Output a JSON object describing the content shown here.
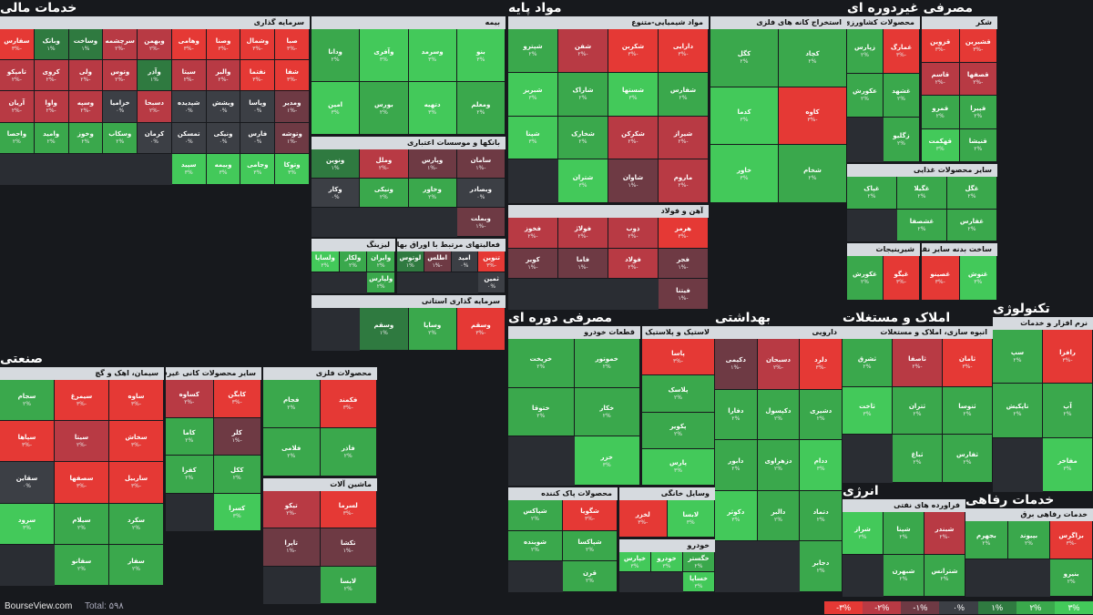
{
  "site": "BourseView.com",
  "total": "Total: ۵۹۸",
  "colors": {
    "background": "#17191d",
    "header_bar": "#d6dadf"
  },
  "legend": [
    {
      "label": "-۳%",
      "color": "#e53935"
    },
    {
      "label": "-۲%",
      "color": "#b83a44"
    },
    {
      "label": "-۱%",
      "color": "#6e3a44"
    },
    {
      "label": "۰%",
      "color": "#3c3f45"
    },
    {
      "label": "۱%",
      "color": "#2f7a40"
    },
    {
      "label": "۲%",
      "color": "#3aa84c"
    },
    {
      "label": "۳%",
      "color": "#43c95a"
    }
  ],
  "chart_data": {
    "type": "heatmap",
    "sectors": [
      {
        "name": "خدمات مالی",
        "groups": [
          {
            "name": "سرمایه گذاری",
            "stocks": [
              [
                "صبا",
                -3
              ],
              [
                "وشمال",
                -3
              ],
              [
                "وصنا",
                -3
              ],
              [
                "وهامی",
                -3
              ],
              [
                "وبهمن",
                -2
              ],
              [
                "سرچشمه",
                -2
              ],
              [
                "وساخت",
                1
              ],
              [
                "وبانک",
                1
              ],
              [
                "سفارس",
                -3
              ],
              [
                "شفا",
                -3
              ],
              [
                "نفتما",
                -3
              ],
              [
                "والبر",
                -2
              ],
              [
                "سیتا",
                -2
              ],
              [
                "وآذر",
                1
              ],
              [
                "وتوس",
                -2
              ],
              [
                "ولی",
                -2
              ],
              [
                "کروی",
                -2
              ],
              [
                "تامپکو",
                -2
              ],
              [
                "ومدیر",
                -1
              ],
              [
                "وپاسا",
                0
              ],
              [
                "ویشش",
                0
              ],
              [
                "شپدیده",
                0
              ],
              [
                "دسبحا",
                -2
              ],
              [
                "خزامیا",
                0
              ],
              [
                "وسپه",
                -2
              ],
              [
                "واوا",
                -2
              ],
              [
                "آریان",
                -2
              ],
              [
                "وتوشه",
                -1
              ],
              [
                "فارس",
                0
              ],
              [
                "ونیکی",
                0
              ],
              [
                "تمسکن",
                0
              ],
              [
                "کرمان",
                0
              ],
              [
                "وسکاب",
                2
              ],
              [
                "وخوز",
                2
              ],
              [
                "وامید",
                2
              ],
              [
                "واحصا",
                2
              ],
              [
                "وتوکا",
                3
              ],
              [
                "وجامی",
                3
              ],
              [
                "وبیمه",
                3
              ],
              [
                "سپید",
                3
              ]
            ]
          },
          {
            "name": "بیمه",
            "stocks": [
              [
                "بنو",
                3
              ],
              [
                "وسرمد",
                3
              ],
              [
                "وآفری",
                3
              ],
              [
                "ودانا",
                2
              ],
              [
                "ومعلم",
                2
              ],
              [
                "دتهیه",
                3
              ],
              [
                "بورس",
                2
              ],
              [
                "امین",
                3
              ]
            ]
          },
          {
            "name": "بانکها و موسسات اعتباری",
            "stocks": [
              [
                "سامان",
                -1
              ],
              [
                "وپارس",
                -1
              ],
              [
                "وملل",
                -2
              ],
              [
                "ونوین",
                1
              ],
              [
                "وبصادر",
                0
              ],
              [
                "وخاور",
                2
              ],
              [
                "ونیکی",
                2
              ],
              [
                "وکار",
                0
              ],
              [
                "وبملت",
                -1
              ]
            ]
          },
          {
            "name": "فعالیتهای مرتبط با اوراق بهادار",
            "stocks": [
              [
                "تنوین",
                -3
              ],
              [
                "امید",
                0
              ],
              [
                "اطلس",
                -1
              ],
              [
                "لوتوس",
                1
              ],
              [
                "ثمین",
                0
              ]
            ]
          },
          {
            "name": "لیزینگ",
            "stocks": [
              [
                "وایران",
                2
              ],
              [
                "ولکار",
                2
              ],
              [
                "ولساپا",
                3
              ],
              [
                "ولپارس",
                2
              ]
            ]
          },
          {
            "name": "سرمایه گذاری استانی",
            "stocks": [
              [
                "وسقم",
                -3
              ],
              [
                "وساپا",
                2
              ],
              [
                "وسقم",
                1
              ]
            ]
          }
        ]
      },
      {
        "name": "مواد پایه",
        "groups": [
          {
            "name": "مواد شیمیایی-متنوع",
            "stocks": [
              [
                "دارایی",
                -3
              ],
              [
                "شکربن",
                -3
              ],
              [
                "شفن",
                -2
              ],
              [
                "شپترو",
                2
              ],
              [
                "شفارس",
                2
              ],
              [
                "شستها",
                3
              ],
              [
                "شاراک",
                2
              ],
              [
                "شبریز",
                3
              ],
              [
                "شیراز",
                -2
              ],
              [
                "شکرکن",
                -2
              ],
              [
                "شخارک",
                2
              ],
              [
                "شپنا",
                3
              ],
              [
                "ماروم",
                -2
              ],
              [
                "شاوان",
                -1
              ],
              [
                "شتران",
                3
              ]
            ]
          },
          {
            "name": "استخراج کانه های فلزی",
            "stocks": [
              [
                "کچاد",
                2
              ],
              [
                "کگل",
                2
              ],
              [
                "کاوه",
                -3
              ],
              [
                "کدما",
                3
              ],
              [
                "شخام",
                2
              ],
              [
                "خاور",
                3
              ]
            ]
          },
          {
            "name": "آهن و فولاد",
            "stocks": [
              [
                "هرمز",
                -3
              ],
              [
                "ذوب",
                -2
              ],
              [
                "فولاژ",
                -2
              ],
              [
                "فخوز",
                -2
              ],
              [
                "فجر",
                -1
              ],
              [
                "فولاد",
                -2
              ],
              [
                "فاما",
                -1
              ],
              [
                "کویر",
                -1
              ],
              [
                "فیتنا",
                -1
              ]
            ]
          }
        ]
      },
      {
        "name": "مصرفی غیردوره ای",
        "groups": [
          {
            "name": "محصولات کشاورزی و دامپروری",
            "stocks": [
              [
                "غمارگ",
                -3
              ],
              [
                "زپارس",
                2
              ],
              [
                "غشهد",
                2
              ],
              [
                "عکورش",
                2
              ],
              [
                "زگلیو",
                2
              ]
            ]
          },
          {
            "name": "شکر",
            "stocks": [
              [
                "قشیرین",
                -3
              ],
              [
                "قزوین",
                -3
              ],
              [
                "قصفها",
                -2
              ],
              [
                "قاسم",
                -2
              ],
              [
                "قپیرا",
                2
              ],
              [
                "قمرو",
                2
              ],
              [
                "قنیشا",
                2
              ],
              [
                "قهکمت",
                3
              ]
            ]
          },
          {
            "name": "سایر محصولات غذایی",
            "stocks": [
              [
                "غگل",
                2
              ],
              [
                "غگیلا",
                2
              ],
              [
                "غپاک",
                2
              ],
              [
                "غفارس",
                2
              ],
              [
                "غشصفا",
                2
              ]
            ]
          },
          {
            "name": "شیرینیجات",
            "stocks": [
              [
                "غیگو",
                -3
              ],
              [
                "غکورش",
                2
              ]
            ]
          },
          {
            "name": "ساخت بدنه سایر نقلیه موتوری",
            "stocks": [
              [
                "غنوش",
                3
              ],
              [
                "غصینو",
                -3
              ]
            ]
          }
        ]
      },
      {
        "name": "صنعتی",
        "groups": [
          {
            "name": "سیمان، اهک و گچ",
            "stocks": [
              [
                "ساوه",
                -3
              ],
              [
                "سیمرغ",
                -3
              ],
              [
                "سجام",
                2
              ],
              [
                "سخاش",
                -3
              ],
              [
                "سیتا",
                -2
              ],
              [
                "سپاها",
                -3
              ],
              [
                "ساربیل",
                -3
              ],
              [
                "سصفها",
                -3
              ],
              [
                "سقاین",
                0
              ],
              [
                "سکرد",
                2
              ],
              [
                "سیلام",
                2
              ],
              [
                "سرود",
                3
              ],
              [
                "سفار",
                2
              ],
              [
                "سفانو",
                2
              ]
            ]
          },
          {
            "name": "سایر محصولات کانی غیرفلزی",
            "stocks": [
              [
                "کابگن",
                -3
              ],
              [
                "کساوه",
                -2
              ],
              [
                "کلر",
                -1
              ],
              [
                "کاما",
                2
              ],
              [
                "ککل",
                2
              ],
              [
                "کفرا",
                2
              ],
              [
                "کسرا",
                3
              ]
            ]
          },
          {
            "name": "محصولات فلزی",
            "stocks": [
              [
                "فکمند",
                -3
              ],
              [
                "فجام",
                2
              ],
              [
                "فاذر",
                2
              ],
              [
                "فلامی",
                2
              ]
            ]
          },
          {
            "name": "ماشین آلات",
            "stocks": [
              [
                "لسرما",
                -3
              ],
              [
                "تیکو",
                -2
              ],
              [
                "تکشا",
                -1
              ],
              [
                "تاپرا",
                -1
              ],
              [
                "لابسا",
                2
              ]
            ]
          }
        ]
      },
      {
        "name": "مصرفی دوره ای",
        "groups": [
          {
            "name": "قطعات خودرو",
            "stocks": [
              [
                "خموتور",
                2
              ],
              [
                "خریخت",
                2
              ],
              [
                "خکار",
                2
              ],
              [
                "ختوقا",
                2
              ],
              [
                "خزر",
                3
              ]
            ]
          },
          {
            "name": "لاستیک و پلاستیک",
            "stocks": [
              [
                "پاسا",
                -3
              ],
              [
                "پلاسک",
                2
              ],
              [
                "پکویر",
                2
              ],
              [
                "پارس",
                3
              ]
            ]
          },
          {
            "name": "محصولات پاک کننده",
            "stocks": [
              [
                "شگویا",
                -3
              ],
              [
                "شپاکس",
                2
              ],
              [
                "شپاکسا",
                2
              ],
              [
                "شوینده",
                2
              ],
              [
                "قرن",
                2
              ]
            ]
          },
          {
            "name": "وسایل خانگی",
            "stocks": [
              [
                "لابسا",
                3
              ],
              [
                "لخزر",
                -3
              ]
            ]
          },
          {
            "name": "خودرو",
            "stocks": [
              [
                "خگستر",
                2
              ],
              [
                "خودرو",
                3
              ],
              [
                "خپارس",
                3
              ],
              [
                "خساپا",
                3
              ]
            ]
          }
        ]
      },
      {
        "name": "بهداشتی",
        "groups": [
          {
            "name": "دارویی",
            "stocks": [
              [
                "دلرد",
                -3
              ],
              [
                "دسبحان",
                -2
              ],
              [
                "دکیمی",
                -1
              ],
              [
                "دشیری",
                2
              ],
              [
                "دکپسول",
                2
              ],
              [
                "دفارا",
                2
              ],
              [
                "ددام",
                3
              ],
              [
                "دزهراوی",
                2
              ],
              [
                "دابور",
                2
              ],
              [
                "دتماد",
                2
              ],
              [
                "دالبر",
                2
              ],
              [
                "دکوثر",
                3
              ],
              [
                "دجابر",
                2
              ]
            ]
          }
        ]
      },
      {
        "name": "املاک و مستغلات",
        "groups": [
          {
            "name": "انبوه سازی، املاک و مستغلات",
            "stocks": [
              [
                "ثامان",
                -3
              ],
              [
                "ثاصفا",
                -2
              ],
              [
                "ثشرق",
                2
              ],
              [
                "ثنوسا",
                2
              ],
              [
                "ثتران",
                2
              ],
              [
                "ثاخت",
                3
              ],
              [
                "ثفارس",
                2
              ],
              [
                "ثباغ",
                2
              ]
            ]
          }
        ]
      },
      {
        "name": "تکنولوژی",
        "groups": [
          {
            "name": "نرم افزار و خدمات",
            "stocks": [
              [
                "رافزا",
                -3
              ],
              [
                "سپ",
                2
              ],
              [
                "آپ",
                2
              ],
              [
                "تاپکیش",
                2
              ],
              [
                "مفاخر",
                3
              ]
            ]
          }
        ]
      },
      {
        "name": "انرژی",
        "groups": [
          {
            "name": "فراورده های نفتی",
            "stocks": [
              [
                "شبندر",
                -2
              ],
              [
                "شپنا",
                2
              ],
              [
                "شراز",
                3
              ],
              [
                "شترانس",
                2
              ],
              [
                "شبهرن",
                2
              ]
            ]
          }
        ]
      },
      {
        "name": "خدمات رفاهی",
        "groups": [
          {
            "name": "خدمات رفاهی برق",
            "stocks": [
              [
                "بزاگرس",
                -3
              ],
              [
                "بپیوند",
                2
              ],
              [
                "بجهرم",
                2
              ],
              [
                "بنیرو",
                2
              ]
            ]
          }
        ]
      }
    ]
  }
}
